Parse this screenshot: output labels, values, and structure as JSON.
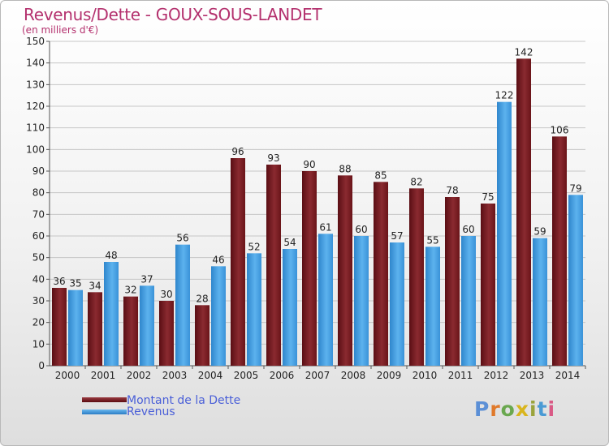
{
  "chart_data": {
    "type": "bar",
    "title": "Revenus/Dette - GOUX-SOUS-LANDET",
    "subtitle": "(en milliers d'€)",
    "categories": [
      "2000",
      "2001",
      "2002",
      "2003",
      "2004",
      "2005",
      "2006",
      "2007",
      "2008",
      "2009",
      "2010",
      "2011",
      "2012",
      "2013",
      "2014"
    ],
    "series": [
      {
        "name": "Montant de la Dette",
        "color": "#7a1a22",
        "values": [
          36,
          34,
          32,
          30,
          28,
          96,
          93,
          90,
          88,
          85,
          82,
          78,
          75,
          142,
          106
        ]
      },
      {
        "name": "Revenus",
        "color": "#3c9ce0",
        "values": [
          35,
          48,
          37,
          56,
          46,
          52,
          54,
          61,
          60,
          57,
          55,
          60,
          122,
          59,
          79
        ]
      }
    ],
    "ylim": [
      0,
      150
    ],
    "yticks": [
      0,
      10,
      20,
      30,
      40,
      50,
      60,
      70,
      80,
      90,
      100,
      110,
      120,
      130,
      140,
      150
    ],
    "grid": true,
    "legend": "bottom-left"
  },
  "logo": {
    "text": "Proxiti",
    "letters": [
      "P",
      "r",
      "o",
      "x",
      "i",
      "t",
      "i"
    ],
    "colors": [
      "#5b8fd6",
      "#e07a2b",
      "#6aa84f",
      "#d9b51e",
      "#9aa33c",
      "#4a9ad4",
      "#d95a86"
    ]
  }
}
